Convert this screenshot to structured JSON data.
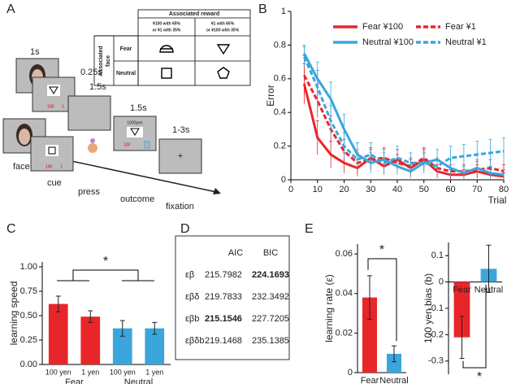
{
  "diagram": {
    "panel": "A",
    "timings": [
      "1s",
      "0.25s",
      "1.5s",
      "1.5s",
      "1-3s"
    ],
    "stages": [
      "face",
      "cue",
      "press",
      "outcome",
      "fixation"
    ],
    "outcome_text": "1000yen",
    "screen_values": [
      "100",
      "1"
    ],
    "fixation_mark": "+",
    "reward_table": {
      "header": "Associated reward",
      "columns": [
        [
          "¥100 with 65%",
          "or ¥1 with 35%"
        ],
        [
          "¥1 with 65%",
          "or ¥100 with 35%"
        ]
      ],
      "row_header": [
        "Associated",
        "face"
      ],
      "rows": [
        "Fear",
        "Neutral"
      ]
    }
  },
  "table": {
    "panel": "D",
    "columns": [
      "AIC",
      "BIC"
    ],
    "rows": [
      {
        "model": "εβ",
        "values": [
          215.7982,
          224.1693
        ]
      },
      {
        "model": "εβδ",
        "values": [
          219.7833,
          232.3492
        ]
      },
      {
        "model": "εβb",
        "values": [
          215.1546,
          227.7205
        ]
      },
      {
        "model": "εβδb",
        "values": [
          219.1468,
          235.1385
        ]
      }
    ]
  },
  "chart_data": [
    {
      "panel": "B",
      "type": "line",
      "xlabel": "Trial",
      "ylabel": "Error",
      "x": [
        5,
        10,
        15,
        20,
        25,
        30,
        35,
        40,
        45,
        50,
        55,
        60,
        65,
        70,
        75,
        80
      ],
      "xlim": [
        0,
        80
      ],
      "xticks": [
        0,
        10,
        20,
        30,
        40,
        50,
        60,
        70,
        80
      ],
      "ylim": [
        0,
        1
      ],
      "yticks": [
        0,
        0.2,
        0.4,
        0.6,
        0.8,
        1
      ],
      "series": [
        {
          "name": "Fear ¥100",
          "color": "#e8262a",
          "dash": false,
          "values": [
            0.57,
            0.25,
            0.15,
            0.1,
            0.07,
            0.13,
            0.08,
            0.12,
            0.07,
            0.12,
            0.05,
            0.03,
            0.03,
            0.05,
            0.03,
            0.02
          ],
          "errors": [
            0.12,
            0.1,
            0.08,
            0.06,
            0.05,
            0.06,
            0.05,
            0.06,
            0.05,
            0.06,
            0.04,
            0.03,
            0.03,
            0.04,
            0.03,
            0.02
          ]
        },
        {
          "name": "Fear ¥1",
          "color": "#e8262a",
          "dash": true,
          "values": [
            0.62,
            0.47,
            0.3,
            0.17,
            0.1,
            0.12,
            0.13,
            0.1,
            0.08,
            0.13,
            0.07,
            0.05,
            0.05,
            0.06,
            0.07,
            0.05
          ],
          "errors": [
            0.12,
            0.1,
            0.08,
            0.07,
            0.06,
            0.06,
            0.06,
            0.05,
            0.05,
            0.06,
            0.05,
            0.04,
            0.04,
            0.05,
            0.05,
            0.04
          ]
        },
        {
          "name": "Neutral ¥100",
          "color": "#3aa6dc",
          "dash": false,
          "values": [
            0.75,
            0.6,
            0.48,
            0.3,
            0.15,
            0.1,
            0.12,
            0.08,
            0.05,
            0.1,
            0.12,
            0.07,
            0.04,
            0.07,
            0.04,
            0.03
          ],
          "errors": [
            0.05,
            0.1,
            0.1,
            0.09,
            0.07,
            0.06,
            0.06,
            0.05,
            0.04,
            0.06,
            0.06,
            0.05,
            0.04,
            0.05,
            0.04,
            0.03
          ]
        },
        {
          "name": "Neutral ¥1",
          "color": "#3aa6dc",
          "dash": true,
          "values": [
            0.73,
            0.55,
            0.35,
            0.2,
            0.12,
            0.15,
            0.1,
            0.13,
            0.1,
            0.1,
            0.08,
            0.13,
            0.14,
            0.15,
            0.16,
            0.17
          ],
          "errors": [
            0.06,
            0.1,
            0.09,
            0.08,
            0.06,
            0.07,
            0.06,
            0.07,
            0.06,
            0.06,
            0.05,
            0.07,
            0.07,
            0.08,
            0.08,
            0.08
          ]
        }
      ]
    },
    {
      "panel": "C",
      "type": "bar",
      "ylabel": "learning speed",
      "categories": [
        "100 yen",
        "1 yen",
        "100 yen",
        "1 yen"
      ],
      "group_labels": [
        "Fear",
        "Neutral"
      ],
      "colors": [
        "#e8262a",
        "#e8262a",
        "#3aa6dc",
        "#3aa6dc"
      ],
      "values": [
        0.62,
        0.49,
        0.37,
        0.37
      ],
      "errors": [
        0.08,
        0.06,
        0.08,
        0.06
      ],
      "ylim": [
        0,
        1.05
      ],
      "yticks": [
        {
          "value": 0,
          "label": "0.00"
        },
        0.25,
        {
          "value": 0.5,
          "label": "0.50"
        },
        0.75,
        {
          "value": 1,
          "label": "1.00"
        }
      ],
      "annotation": "*"
    },
    {
      "panel": "E",
      "type": "bar",
      "ylabel": "learning rate (ε)",
      "categories": [
        "Fear",
        "Neutral"
      ],
      "colors": [
        "#e8262a",
        "#3aa6dc"
      ],
      "values": [
        0.038,
        0.0095
      ],
      "errors": [
        0.011,
        0.004
      ],
      "ylim": [
        0,
        0.065
      ],
      "yticks": [
        0,
        0.02,
        0.04,
        0.06
      ],
      "annotation": "*"
    },
    {
      "type": "bar",
      "ylabel": "100 yen bias (b)",
      "categories": [
        "Fear",
        "Neutral"
      ],
      "colors": [
        "#e8262a",
        "#3aa6dc"
      ],
      "values": [
        -0.21,
        0.05
      ],
      "errors": [
        0.08,
        0.09
      ],
      "ylim": [
        -0.35,
        0.15
      ],
      "yticks": [
        -0.3,
        -0.2,
        -0.1,
        0,
        0.1
      ],
      "annotation": "*"
    }
  ]
}
